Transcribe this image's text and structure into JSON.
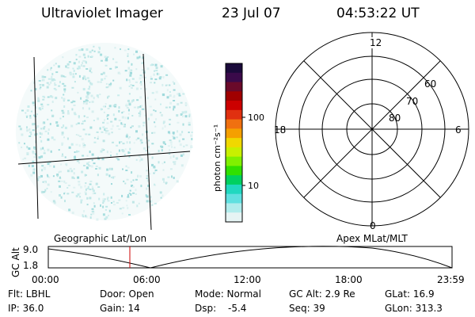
{
  "header": {
    "instrument": "Ultraviolet Imager",
    "date": "23 Jul 07",
    "time": "04:53:22 UT"
  },
  "colorbar": {
    "unit_label": "photon cm⁻²s⁻¹",
    "ticks": [
      "100",
      "10"
    ],
    "colors": [
      "#1a0a3a",
      "#3a0a4a",
      "#6a0a2a",
      "#a00000",
      "#cc0000",
      "#e03010",
      "#f07010",
      "#f5a000",
      "#f0d800",
      "#c8f000",
      "#80f000",
      "#30e000",
      "#00d060",
      "#20d8c0",
      "#60e0e0",
      "#b0ecec",
      "#e6f4f4"
    ]
  },
  "polar_plot": {
    "mlt_labels": {
      "top": "12",
      "right": "6",
      "bottom": "0",
      "left": "18"
    },
    "lat_labels": [
      "60",
      "70",
      "80"
    ]
  },
  "timeline": {
    "left_label": "Geographic Lat/Lon",
    "right_label": "Apex MLat/MLT",
    "yaxis_label": "GC Alt",
    "y_max": "9.0",
    "y_min": "1.8",
    "x_ticks": [
      "00:00",
      "06:00",
      "12:00",
      "18:00",
      "23:59"
    ],
    "marker_color": "#cc0000"
  },
  "status": {
    "flt": "Flt: LBHL",
    "door": "Door: Open",
    "mode": "Mode: Normal",
    "gc_alt": "GC Alt: 2.9 Re",
    "glat": "GLat:  16.9",
    "ip": "IP: 36.0",
    "gain": "Gain: 14",
    "dsp_label": "Dsp:",
    "dsp_value": "-5.4",
    "seq": "Seq: 39",
    "glon": "GLon: 313.3"
  }
}
